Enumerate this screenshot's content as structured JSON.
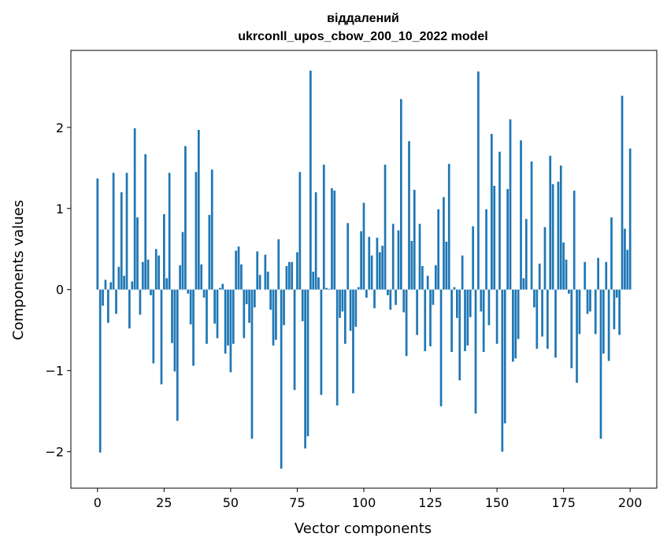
{
  "chart_data": {
    "type": "bar",
    "title_line1": "віддалений",
    "title_line2": "ukrconll_upos_cbow_200_10_2022 model",
    "xlabel": "Vector components",
    "ylabel": "Components values",
    "xlim": [
      -10,
      210
    ],
    "ylim": [
      -2.45,
      2.95
    ],
    "xticks": [
      0,
      25,
      50,
      75,
      100,
      125,
      150,
      175,
      200
    ],
    "yticks": [
      -2,
      -1,
      0,
      1,
      2
    ],
    "ytick_labels": [
      "−2",
      "−1",
      "0",
      "1",
      "2"
    ],
    "bar_color": "#1f77b4",
    "values": [
      1.37,
      -2.01,
      -0.2,
      0.12,
      -0.41,
      0.09,
      1.44,
      -0.3,
      0.28,
      1.2,
      0.17,
      1.44,
      -0.48,
      0.1,
      1.99,
      0.89,
      -0.31,
      0.34,
      1.67,
      0.37,
      -0.07,
      -0.91,
      0.5,
      0.42,
      -1.17,
      0.93,
      0.14,
      1.44,
      -0.66,
      -1.01,
      -1.62,
      0.3,
      0.71,
      1.77,
      -0.05,
      -0.43,
      -0.94,
      1.45,
      1.97,
      0.31,
      -0.1,
      -0.67,
      0.92,
      1.48,
      -0.42,
      -0.6,
      0.02,
      0.07,
      -0.79,
      -0.69,
      -1.02,
      -0.67,
      0.48,
      0.53,
      0.31,
      -0.6,
      -0.18,
      -0.41,
      -1.84,
      -0.22,
      0.47,
      0.18,
      0.0,
      0.43,
      0.22,
      -0.25,
      -0.69,
      -0.62,
      0.62,
      -2.21,
      -0.44,
      0.29,
      0.34,
      0.34,
      -1.24,
      0.46,
      1.45,
      -0.39,
      -1.96,
      -1.81,
      2.7,
      0.22,
      1.2,
      0.15,
      -1.3,
      1.54,
      0.02,
      0.01,
      1.25,
      1.22,
      -1.43,
      -0.35,
      -0.27,
      -0.67,
      0.82,
      -0.51,
      -1.28,
      -0.46,
      0.03,
      0.72,
      1.07,
      -0.1,
      0.65,
      0.42,
      -0.23,
      0.64,
      0.46,
      0.54,
      1.54,
      -0.07,
      -0.25,
      0.81,
      -0.19,
      0.73,
      2.35,
      -0.28,
      -0.82,
      1.83,
      0.6,
      1.23,
      -0.56,
      0.81,
      0.29,
      -0.76,
      0.17,
      -0.7,
      -0.19,
      0.3,
      0.99,
      -1.44,
      1.14,
      0.59,
      1.55,
      -0.77,
      0.03,
      -0.35,
      -1.12,
      0.42,
      -0.76,
      -0.69,
      -0.34,
      0.78,
      -1.53,
      2.69,
      -0.27,
      -0.77,
      0.99,
      -0.44,
      1.92,
      1.28,
      -0.67,
      1.7,
      -2.0,
      -1.65,
      1.24,
      2.1,
      -0.89,
      -0.85,
      -0.61,
      1.84,
      0.14,
      0.87,
      0.0,
      1.58,
      -0.22,
      -0.73,
      0.32,
      -0.58,
      0.77,
      -0.73,
      1.65,
      1.3,
      -0.84,
      1.33,
      1.53,
      0.58,
      0.37,
      -0.05,
      -0.97,
      1.22,
      -1.15,
      -0.55,
      0.0,
      0.34,
      -0.3,
      -0.27,
      0.0,
      -0.55,
      0.39,
      -1.84,
      -0.79,
      0.34,
      -0.88,
      0.89,
      -0.49,
      -0.1,
      -0.56,
      2.39,
      0.75,
      0.49,
      1.74
    ]
  }
}
